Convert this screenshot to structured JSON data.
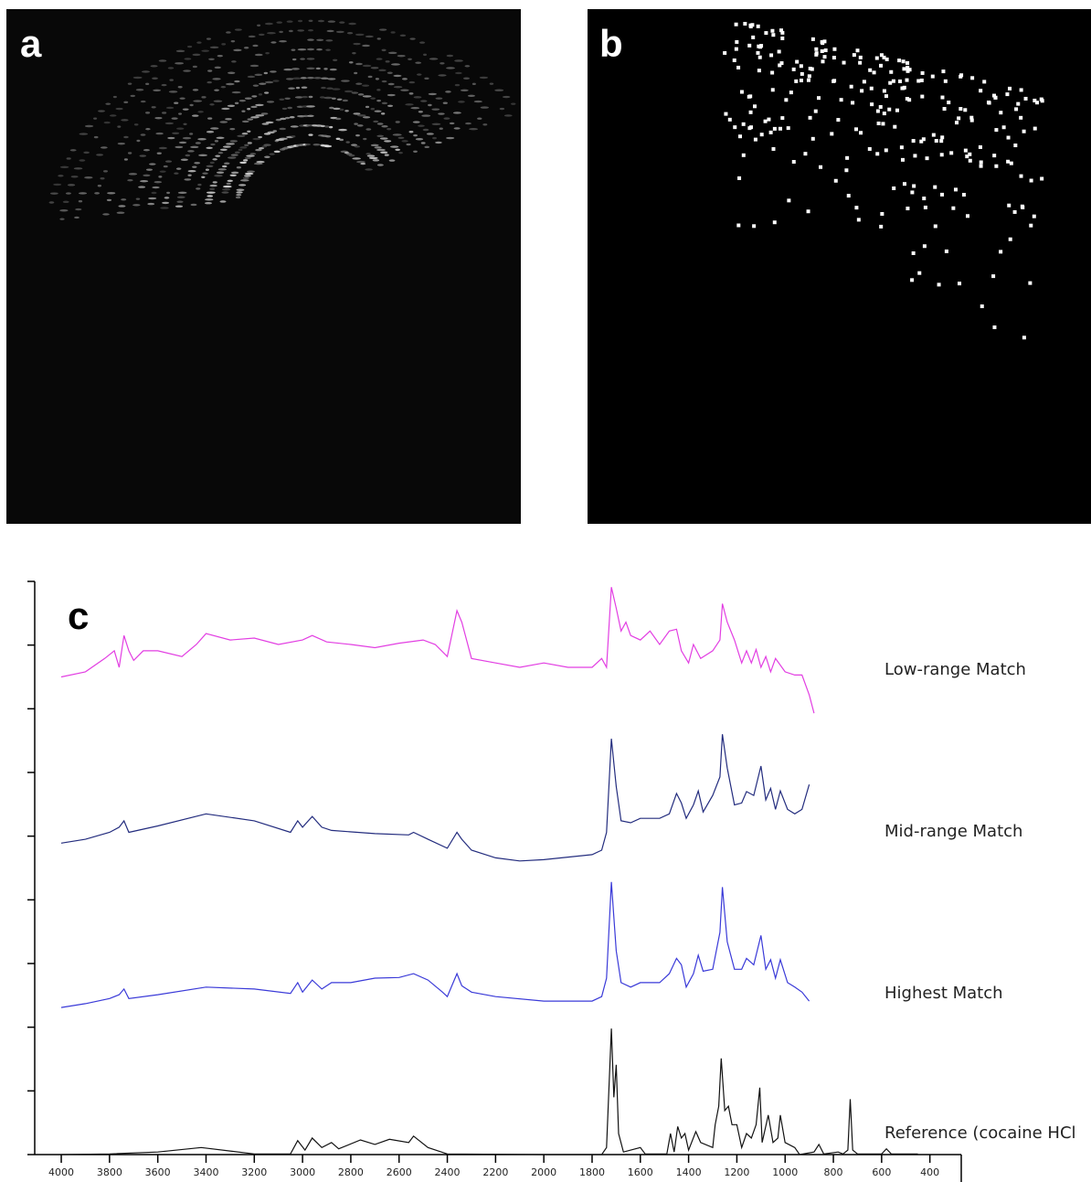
{
  "panels": [
    {
      "label": "a"
    },
    {
      "label": "b"
    }
  ],
  "chart_data": {
    "type": "line",
    "panel_label": "c",
    "xlim": [
      4110,
      270
    ],
    "xticks": [
      4000,
      3800,
      3600,
      3400,
      3200,
      3000,
      2800,
      2600,
      2400,
      2200,
      2000,
      1800,
      1600,
      1400,
      1200,
      1000,
      800,
      600,
      400
    ],
    "ylim": [
      0,
      9
    ],
    "yticks": [
      0,
      1,
      2,
      3,
      4,
      5,
      6,
      7,
      8,
      9
    ],
    "series": [
      {
        "name": "Low-range Match",
        "color": "#e23ee2",
        "x": [
          4000,
          3900,
          3820,
          3780,
          3760,
          3740,
          3720,
          3700,
          3660,
          3600,
          3500,
          3440,
          3400,
          3300,
          3200,
          3100,
          3000,
          2960,
          2900,
          2800,
          2700,
          2600,
          2500,
          2450,
          2400,
          2360,
          2340,
          2300,
          2200,
          2100,
          2000,
          1900,
          1800,
          1760,
          1740,
          1720,
          1700,
          1680,
          1660,
          1640,
          1600,
          1560,
          1520,
          1480,
          1450,
          1430,
          1400,
          1380,
          1350,
          1300,
          1270,
          1260,
          1240,
          1210,
          1180,
          1160,
          1140,
          1120,
          1100,
          1080,
          1060,
          1040,
          1000,
          960,
          930,
          900,
          880
        ],
        "values": [
          7.5,
          7.58,
          7.79,
          7.91,
          7.65,
          8.15,
          7.91,
          7.76,
          7.91,
          7.91,
          7.82,
          8.01,
          8.18,
          8.08,
          8.11,
          8.01,
          8.08,
          8.15,
          8.05,
          8.01,
          7.96,
          8.03,
          8.08,
          8.01,
          7.82,
          8.54,
          8.36,
          7.79,
          7.72,
          7.65,
          7.72,
          7.65,
          7.65,
          7.79,
          7.65,
          8.91,
          8.58,
          8.22,
          8.36,
          8.15,
          8.08,
          8.22,
          8.01,
          8.22,
          8.25,
          7.91,
          7.72,
          8.01,
          7.79,
          7.91,
          8.08,
          8.65,
          8.36,
          8.08,
          7.72,
          7.91,
          7.72,
          7.93,
          7.65,
          7.82,
          7.58,
          7.79,
          7.58,
          7.53,
          7.53,
          7.22,
          6.93
        ]
      },
      {
        "name": "Mid-range Match",
        "color": "#232c7e",
        "x": [
          4000,
          3900,
          3800,
          3760,
          3740,
          3720,
          3600,
          3400,
          3200,
          3050,
          3020,
          3000,
          2960,
          2920,
          2880,
          2700,
          2560,
          2540,
          2480,
          2400,
          2360,
          2340,
          2300,
          2200,
          2100,
          2000,
          1800,
          1760,
          1740,
          1720,
          1700,
          1680,
          1640,
          1600,
          1520,
          1480,
          1450,
          1430,
          1410,
          1380,
          1360,
          1340,
          1300,
          1270,
          1260,
          1240,
          1210,
          1180,
          1160,
          1130,
          1100,
          1080,
          1060,
          1040,
          1020,
          990,
          960,
          930,
          900
        ],
        "values": [
          4.89,
          4.95,
          5.06,
          5.14,
          5.24,
          5.06,
          5.16,
          5.35,
          5.24,
          5.06,
          5.24,
          5.14,
          5.31,
          5.14,
          5.09,
          5.04,
          5.02,
          5.06,
          4.95,
          4.81,
          5.06,
          4.95,
          4.78,
          4.66,
          4.61,
          4.63,
          4.71,
          4.78,
          5.06,
          6.53,
          5.78,
          5.24,
          5.21,
          5.28,
          5.28,
          5.35,
          5.67,
          5.52,
          5.28,
          5.49,
          5.71,
          5.38,
          5.64,
          5.93,
          6.6,
          6.07,
          5.49,
          5.52,
          5.7,
          5.64,
          6.1,
          5.57,
          5.75,
          5.42,
          5.71,
          5.42,
          5.35,
          5.42,
          5.81
        ]
      },
      {
        "name": "Highest Match",
        "color": "#3a3ad8",
        "x": [
          4000,
          3900,
          3800,
          3760,
          3740,
          3720,
          3600,
          3400,
          3200,
          3050,
          3020,
          3000,
          2960,
          2920,
          2880,
          2800,
          2700,
          2600,
          2540,
          2480,
          2420,
          2400,
          2360,
          2340,
          2300,
          2200,
          2000,
          1800,
          1760,
          1740,
          1720,
          1700,
          1680,
          1640,
          1600,
          1520,
          1480,
          1450,
          1430,
          1410,
          1380,
          1360,
          1340,
          1300,
          1270,
          1260,
          1240,
          1210,
          1180,
          1160,
          1130,
          1100,
          1080,
          1060,
          1040,
          1020,
          990,
          960,
          930,
          900
        ],
        "values": [
          2.31,
          2.37,
          2.45,
          2.51,
          2.6,
          2.45,
          2.51,
          2.63,
          2.6,
          2.53,
          2.7,
          2.55,
          2.74,
          2.6,
          2.7,
          2.7,
          2.77,
          2.78,
          2.84,
          2.74,
          2.55,
          2.48,
          2.84,
          2.65,
          2.55,
          2.48,
          2.41,
          2.41,
          2.48,
          2.77,
          4.28,
          3.2,
          2.7,
          2.63,
          2.7,
          2.7,
          2.84,
          3.08,
          2.98,
          2.63,
          2.84,
          3.13,
          2.88,
          2.91,
          3.49,
          4.2,
          3.34,
          2.91,
          2.91,
          3.08,
          2.98,
          3.44,
          2.91,
          3.06,
          2.77,
          3.06,
          2.7,
          2.63,
          2.55,
          2.41
        ]
      },
      {
        "name": "Reference (cocaine HCl",
        "color": "#111111",
        "x": [
          4000,
          3800,
          3600,
          3420,
          3200,
          3050,
          3020,
          2990,
          2960,
          2920,
          2880,
          2850,
          2760,
          2700,
          2640,
          2560,
          2540,
          2480,
          2400,
          2000,
          1760,
          1740,
          1720,
          1710,
          1700,
          1690,
          1670,
          1600,
          1580,
          1490,
          1475,
          1460,
          1445,
          1430,
          1415,
          1400,
          1370,
          1350,
          1300,
          1290,
          1275,
          1265,
          1250,
          1235,
          1220,
          1200,
          1180,
          1160,
          1140,
          1120,
          1105,
          1095,
          1070,
          1050,
          1030,
          1020,
          1000,
          960,
          940,
          880,
          860,
          840,
          780,
          760,
          740,
          730,
          720,
          700,
          600,
          580,
          560,
          450
        ],
        "values": [
          0,
          0.01,
          0.04,
          0.11,
          0.01,
          0.01,
          0.22,
          0.07,
          0.26,
          0.11,
          0.19,
          0.09,
          0.23,
          0.16,
          0.24,
          0.19,
          0.29,
          0.11,
          0.01,
          0,
          0,
          0.11,
          1.98,
          0.9,
          1.41,
          0.33,
          0.04,
          0.11,
          0.01,
          0.01,
          0.33,
          0.04,
          0.44,
          0.26,
          0.33,
          0.07,
          0.36,
          0.19,
          0.11,
          0.47,
          0.76,
          1.51,
          0.69,
          0.76,
          0.47,
          0.47,
          0.11,
          0.33,
          0.26,
          0.47,
          1.05,
          0.19,
          0.62,
          0.19,
          0.26,
          0.62,
          0.19,
          0.11,
          0,
          0.04,
          0.16,
          0.01,
          0.04,
          0.01,
          0.07,
          0.87,
          0.07,
          0.01,
          0.01,
          0.09,
          0.01,
          0.01
        ]
      }
    ]
  }
}
